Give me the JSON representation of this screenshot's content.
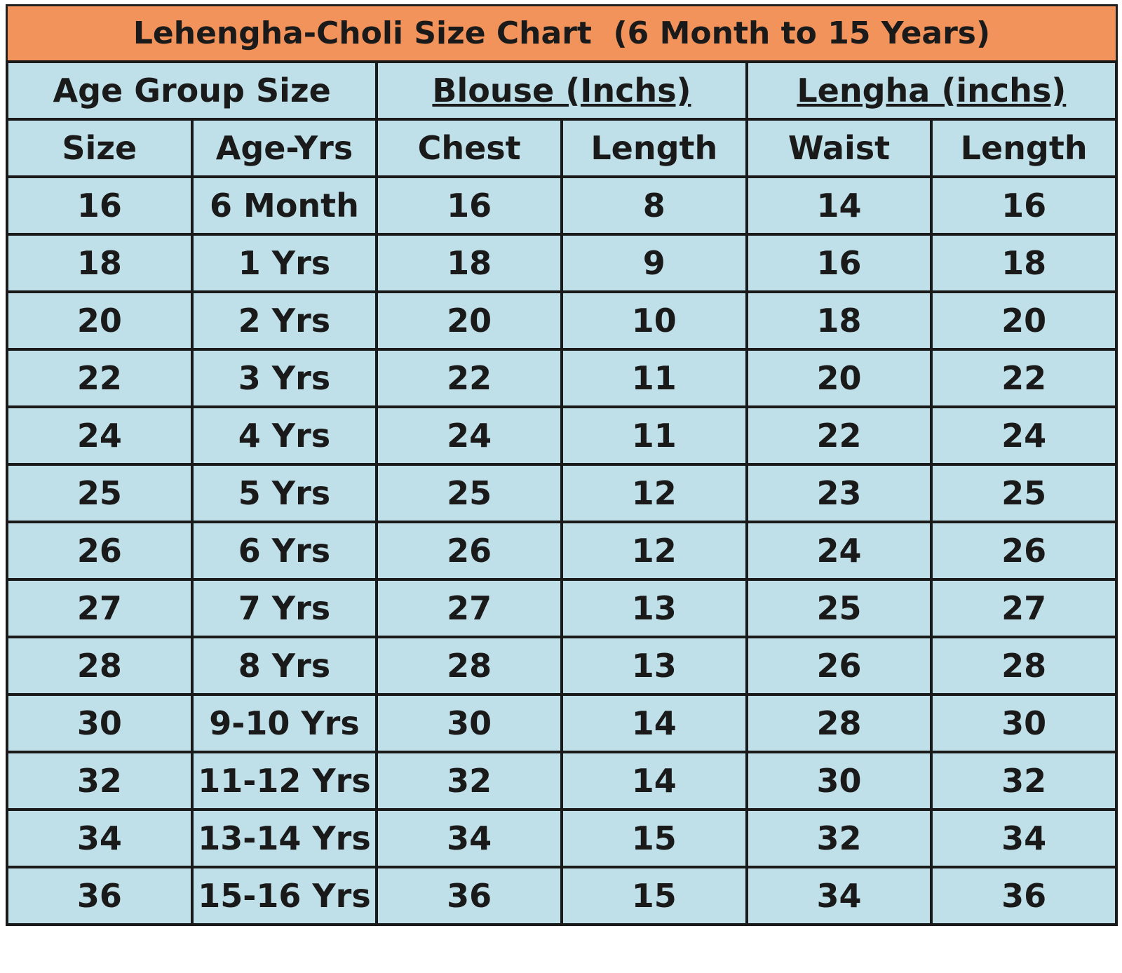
{
  "title": "Lehengha-Choli Size Chart  (6 Month to 15 Years)",
  "table": {
    "group_headers": [
      "Age Group Size",
      "Blouse (Inchs)",
      "Lengha (inchs)"
    ],
    "headers": [
      "Size",
      "Age-Yrs",
      "Chest",
      "Length",
      "Waist",
      "Length"
    ],
    "rows": [
      [
        16,
        "6 Month",
        16,
        8,
        14,
        16
      ],
      [
        18,
        "1 Yrs",
        18,
        9,
        16,
        18
      ],
      [
        20,
        "2 Yrs",
        20,
        10,
        18,
        20
      ],
      [
        22,
        "3 Yrs",
        22,
        11,
        20,
        22
      ],
      [
        24,
        "4 Yrs",
        24,
        11,
        22,
        24
      ],
      [
        25,
        "5 Yrs",
        25,
        12,
        23,
        25
      ],
      [
        26,
        "6 Yrs",
        26,
        12,
        24,
        26
      ],
      [
        27,
        "7 Yrs",
        27,
        13,
        25,
        27
      ],
      [
        28,
        "8 Yrs",
        28,
        13,
        26,
        28
      ],
      [
        30,
        "9-10 Yrs",
        30,
        14,
        28,
        30
      ],
      [
        32,
        "11-12 Yrs",
        32,
        14,
        30,
        32
      ],
      [
        34,
        "13-14 Yrs",
        34,
        15,
        32,
        34
      ],
      [
        36,
        "15-16 Yrs",
        36,
        15,
        34,
        36
      ]
    ]
  }
}
